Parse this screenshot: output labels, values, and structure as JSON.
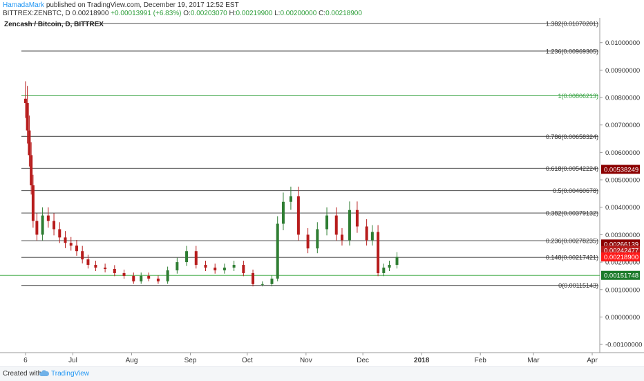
{
  "header": {
    "author": "HamadaMark",
    "published": "published on TradingView.com, December 19, 2017 12:52 EST",
    "symbol": "BITTREX:ZENBTC, D",
    "last": "0.00218900",
    "change": "+0.00013991 (+6.83%)",
    "o_label": "O:",
    "o_value": "0.00203070",
    "h_label": "H:",
    "h_value": "0.00219900",
    "l_label": "L:",
    "l_value": "0.00200000",
    "c_label": "C:",
    "c_value": "0.00218900"
  },
  "footer": {
    "created": "Created with",
    "brand": "TradingView"
  },
  "chart_data": {
    "type": "candlestick",
    "title": "Zencash / Bitcoin, D, BITTREX",
    "ylim": [
      -0.0013,
      0.0109
    ],
    "y_ticks": [
      "0.01000000",
      "0.00900000",
      "0.00800000",
      "0.00700000",
      "0.00600000",
      "0.00500000",
      "0.00400000",
      "0.00300000",
      "0.00200000",
      "0.00100000",
      "0.00000000",
      "-0.00100000"
    ],
    "x_ticks": [
      "6",
      "Jul",
      "Aug",
      "Sep",
      "Oct",
      "Nov",
      "Dec",
      "2018",
      "Feb",
      "Mar",
      "Apr"
    ],
    "x_ticks_bold": [
      "2018"
    ],
    "fib_levels": [
      {
        "level": 1.382,
        "label": "1.382(0.01070201)",
        "value": 0.01070201
      },
      {
        "level": 1.236,
        "label": "1.236(0.00969305)",
        "value": 0.00969305
      },
      {
        "level": 1,
        "label": "1(0.00806213)",
        "value": 0.00806213
      },
      {
        "level": 0.786,
        "label": "0.786(0.00658324)",
        "value": 0.00658324
      },
      {
        "level": 0.618,
        "label": "0.618(0.00542224)",
        "value": 0.00542224
      },
      {
        "level": 0.5,
        "label": "0.5(0.00460678)",
        "value": 0.00460678
      },
      {
        "level": 0.382,
        "label": "0.382(0.00379132)",
        "value": 0.00379132
      },
      {
        "level": 0.236,
        "label": "0.236(0.00278235)",
        "value": 0.00278235
      },
      {
        "level": 0.148,
        "label": "0.148(0.00217421)",
        "value": 0.00217421
      },
      {
        "level": 0,
        "label": "0(0.00115143)",
        "value": 0.00115143
      }
    ],
    "horizontal_line": {
      "value": 0.00151748
    },
    "price_badges": [
      {
        "label": "0.00538249",
        "value": 0.00538249,
        "color": "#8b0000"
      },
      {
        "label": "0.00266139",
        "value": 0.00266139,
        "color": "#8b0000"
      },
      {
        "label": "0.00242477",
        "value": 0.00242477,
        "color": "#b71c1c"
      },
      {
        "label": "0.00218900",
        "value": 0.002189,
        "color": "#ff1a1a"
      },
      {
        "label": "0.00151748",
        "value": 0.00151748,
        "color": "#1b7a2a"
      }
    ],
    "colors": {
      "up": "#2e7d32",
      "down": "#b71c1c",
      "fib_main": "#2e9e3a"
    },
    "series": [
      {
        "date": "2017-06-06",
        "close": 0.0078
      },
      {
        "date": "2017-06-07",
        "close": 0.0068
      },
      {
        "date": "2017-06-08",
        "close": 0.0059
      },
      {
        "date": "2017-06-09",
        "close": 0.0048
      },
      {
        "date": "2017-06-10",
        "close": 0.0035
      },
      {
        "date": "2017-06-12",
        "close": 0.003
      },
      {
        "date": "2017-06-15",
        "close": 0.0037
      },
      {
        "date": "2017-06-18",
        "close": 0.0035
      },
      {
        "date": "2017-06-21",
        "close": 0.0032
      },
      {
        "date": "2017-06-24",
        "close": 0.0029
      },
      {
        "date": "2017-06-27",
        "close": 0.0027
      },
      {
        "date": "2017-06-30",
        "close": 0.0026
      },
      {
        "date": "2017-07-03",
        "close": 0.0024
      },
      {
        "date": "2017-07-06",
        "close": 0.0021
      },
      {
        "date": "2017-07-09",
        "close": 0.0019
      },
      {
        "date": "2017-07-13",
        "close": 0.0018
      },
      {
        "date": "2017-07-18",
        "close": 0.00175
      },
      {
        "date": "2017-07-23",
        "close": 0.0016
      },
      {
        "date": "2017-07-28",
        "close": 0.0015
      },
      {
        "date": "2017-08-02",
        "close": 0.0013
      },
      {
        "date": "2017-08-06",
        "close": 0.0015
      },
      {
        "date": "2017-08-10",
        "close": 0.0014
      },
      {
        "date": "2017-08-15",
        "close": 0.0013
      },
      {
        "date": "2017-08-20",
        "close": 0.0017
      },
      {
        "date": "2017-08-25",
        "close": 0.002
      },
      {
        "date": "2017-08-30",
        "close": 0.0024
      },
      {
        "date": "2017-09-04",
        "close": 0.0019
      },
      {
        "date": "2017-09-09",
        "close": 0.0018
      },
      {
        "date": "2017-09-14",
        "close": 0.0017
      },
      {
        "date": "2017-09-19",
        "close": 0.0018
      },
      {
        "date": "2017-09-24",
        "close": 0.0019
      },
      {
        "date": "2017-09-29",
        "close": 0.0016
      },
      {
        "date": "2017-10-04",
        "close": 0.0012
      },
      {
        "date": "2017-10-09",
        "close": 0.0012
      },
      {
        "date": "2017-10-14",
        "close": 0.0014
      },
      {
        "date": "2017-10-17",
        "close": 0.0034
      },
      {
        "date": "2017-10-20",
        "close": 0.0042
      },
      {
        "date": "2017-10-24",
        "close": 0.0044
      },
      {
        "date": "2017-10-28",
        "close": 0.003
      },
      {
        "date": "2017-11-02",
        "close": 0.0025
      },
      {
        "date": "2017-11-07",
        "close": 0.0032
      },
      {
        "date": "2017-11-12",
        "close": 0.0037
      },
      {
        "date": "2017-11-17",
        "close": 0.003
      },
      {
        "date": "2017-11-20",
        "close": 0.0028
      },
      {
        "date": "2017-11-24",
        "close": 0.0039
      },
      {
        "date": "2017-11-28",
        "close": 0.0033
      },
      {
        "date": "2017-12-03",
        "close": 0.0028
      },
      {
        "date": "2017-12-06",
        "close": 0.0031
      },
      {
        "date": "2017-12-09",
        "close": 0.0016
      },
      {
        "date": "2017-12-12",
        "close": 0.0018
      },
      {
        "date": "2017-12-15",
        "close": 0.0019
      },
      {
        "date": "2017-12-19",
        "close": 0.002189
      }
    ]
  }
}
